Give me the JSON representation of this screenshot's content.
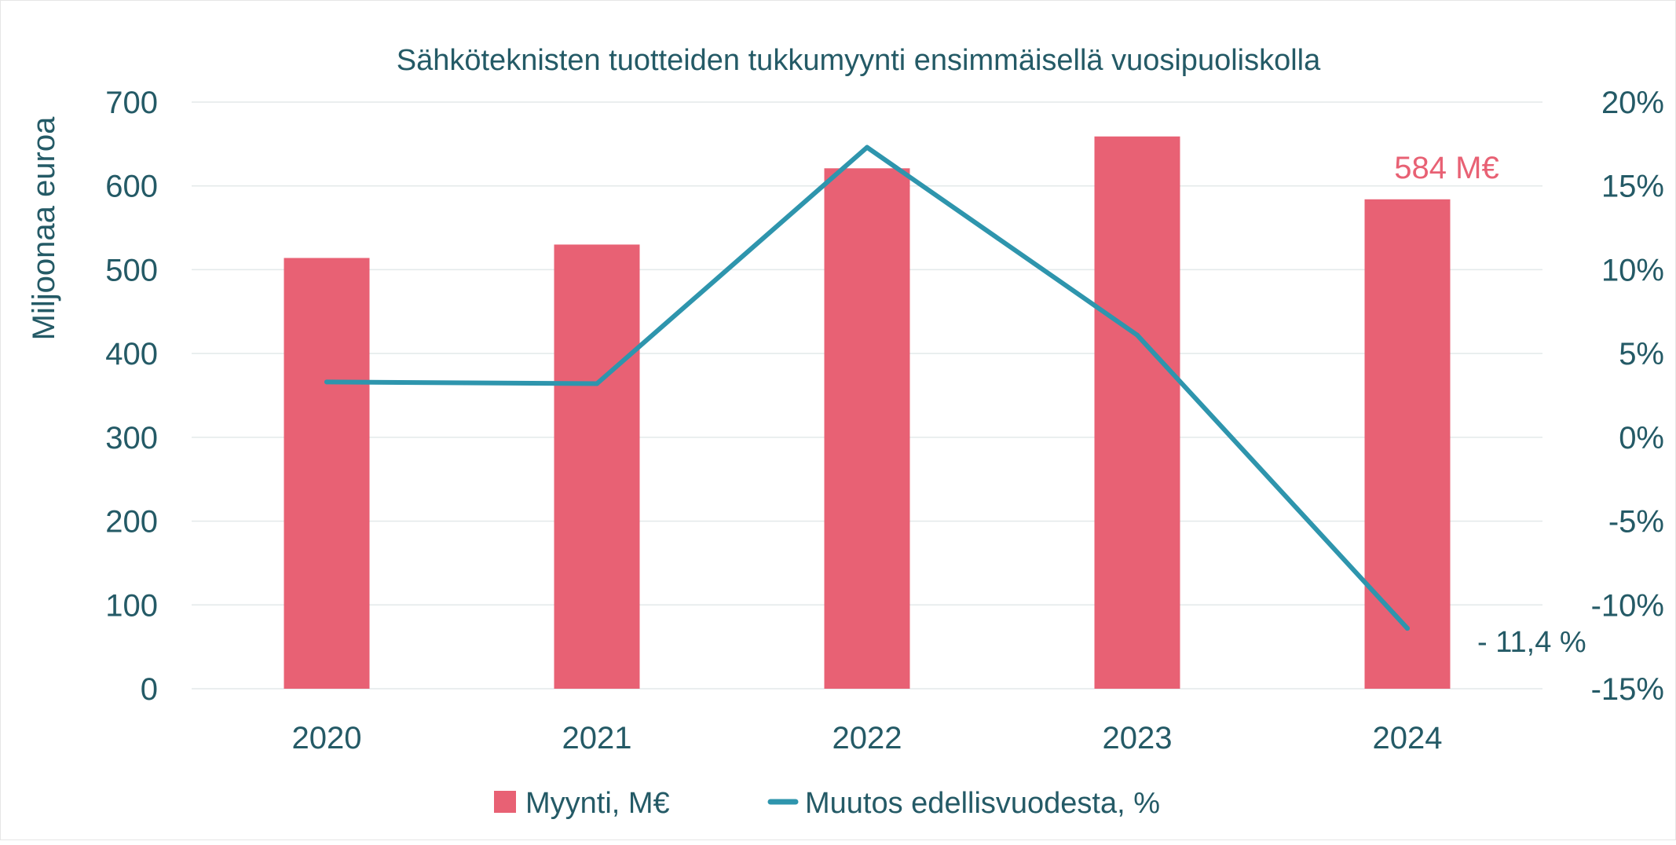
{
  "chart_data": {
    "type": "bar",
    "title": "Sähköteknisten tuotteiden tukkumyynti ensimmäisellä vuosipuoliskolla",
    "ylabel": "Miljoonaa euroa",
    "y2label": "",
    "categories": [
      "2020",
      "2021",
      "2022",
      "2023",
      "2024"
    ],
    "ylim": [
      0,
      700
    ],
    "y_ticks": [
      "0",
      "100",
      "200",
      "300",
      "400",
      "500",
      "600",
      "700"
    ],
    "y2lim": [
      -15,
      20
    ],
    "y2_ticks": [
      "-15%",
      "-10%",
      "-5%",
      "0%",
      "5%",
      "10%",
      "15%",
      "20%"
    ],
    "grid": true,
    "legend": "bottom",
    "series": [
      {
        "name": "Myynti, M€",
        "type": "bar",
        "axis": "left",
        "color": "#e86174",
        "values": [
          514,
          530,
          621,
          659,
          584
        ]
      },
      {
        "name": "Muutos edellisvuodesta, %",
        "type": "line",
        "axis": "right",
        "color": "#2e95ad",
        "values": [
          3.3,
          3.2,
          17.3,
          6.1,
          -11.4
        ]
      }
    ],
    "annotations": {
      "bar_label": "584 M€",
      "line_label": "- 11,4 %"
    }
  },
  "colors": {
    "text": "#245a66",
    "grid": "#e3e9ea"
  }
}
